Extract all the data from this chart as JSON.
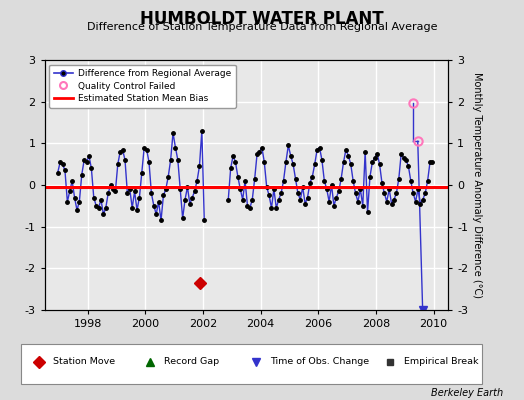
{
  "title": "HUMBOLDT WATER PLANT",
  "subtitle": "Difference of Station Temperature Data from Regional Average",
  "ylabel": "Monthly Temperature Anomaly Difference (°C)",
  "xlim": [
    1996.5,
    2010.5
  ],
  "ylim": [
    -3,
    3
  ],
  "yticks": [
    -3,
    -2,
    -1,
    0,
    1,
    2,
    3
  ],
  "xticks": [
    1998,
    2000,
    2002,
    2004,
    2006,
    2008,
    2010
  ],
  "background_color": "#dcdcdc",
  "plot_bg_color": "#e8e8e8",
  "grid_color": "#ffffff",
  "line_color": "#3333cc",
  "dot_color": "#000000",
  "bias_color": "#ff0000",
  "bias_value": -0.05,
  "station_move_x": 2001.9,
  "station_move_y": -2.35,
  "obs_change_x": 2009.62,
  "qc_fail_x1": 2009.3,
  "qc_fail_y1": 1.97,
  "qc_fail_x2": 2009.45,
  "qc_fail_y2": 1.05,
  "monthly_data": [
    [
      1996.958,
      0.3
    ],
    [
      1997.042,
      0.55
    ],
    [
      1997.125,
      0.5
    ],
    [
      1997.208,
      0.35
    ],
    [
      1997.292,
      -0.4
    ],
    [
      1997.375,
      -0.15
    ],
    [
      1997.458,
      0.1
    ],
    [
      1997.542,
      -0.3
    ],
    [
      1997.625,
      -0.6
    ],
    [
      1997.708,
      -0.4
    ],
    [
      1997.792,
      0.25
    ],
    [
      1997.875,
      0.6
    ],
    [
      1997.958,
      0.55
    ],
    [
      1998.042,
      0.7
    ],
    [
      1998.125,
      0.4
    ],
    [
      1998.208,
      -0.3
    ],
    [
      1998.292,
      -0.5
    ],
    [
      1998.375,
      -0.55
    ],
    [
      1998.458,
      -0.35
    ],
    [
      1998.542,
      -0.7
    ],
    [
      1998.625,
      -0.55
    ],
    [
      1998.708,
      -0.2
    ],
    [
      1998.792,
      0.0
    ],
    [
      1998.875,
      -0.1
    ],
    [
      1998.958,
      -0.15
    ],
    [
      1999.042,
      0.5
    ],
    [
      1999.125,
      0.8
    ],
    [
      1999.208,
      0.85
    ],
    [
      1999.292,
      0.6
    ],
    [
      1999.375,
      -0.2
    ],
    [
      1999.458,
      -0.1
    ],
    [
      1999.542,
      -0.55
    ],
    [
      1999.625,
      -0.15
    ],
    [
      1999.708,
      -0.6
    ],
    [
      1999.792,
      -0.3
    ],
    [
      1999.875,
      0.3
    ],
    [
      1999.958,
      0.9
    ],
    [
      2000.042,
      0.85
    ],
    [
      2000.125,
      0.55
    ],
    [
      2000.208,
      -0.2
    ],
    [
      2000.292,
      -0.5
    ],
    [
      2000.375,
      -0.7
    ],
    [
      2000.458,
      -0.4
    ],
    [
      2000.542,
      -0.85
    ],
    [
      2000.625,
      -0.25
    ],
    [
      2000.708,
      -0.1
    ],
    [
      2000.792,
      0.2
    ],
    [
      2000.875,
      0.6
    ],
    [
      2000.958,
      1.25
    ],
    [
      2001.042,
      0.9
    ],
    [
      2001.125,
      0.6
    ],
    [
      2001.208,
      -0.1
    ],
    [
      2001.292,
      -0.8
    ],
    [
      2001.375,
      -0.35
    ],
    [
      2001.458,
      -0.05
    ],
    [
      2001.542,
      -0.45
    ],
    [
      2001.625,
      -0.3
    ],
    [
      2001.708,
      -0.15
    ],
    [
      2001.792,
      0.1
    ],
    [
      2001.875,
      0.45
    ],
    [
      2001.958,
      1.3
    ],
    [
      2002.042,
      -0.85
    ],
    [
      2002.875,
      -0.35
    ],
    [
      2002.958,
      0.4
    ],
    [
      2003.042,
      0.7
    ],
    [
      2003.125,
      0.55
    ],
    [
      2003.208,
      0.2
    ],
    [
      2003.292,
      -0.1
    ],
    [
      2003.375,
      -0.35
    ],
    [
      2003.458,
      0.1
    ],
    [
      2003.542,
      -0.5
    ],
    [
      2003.625,
      -0.55
    ],
    [
      2003.708,
      -0.35
    ],
    [
      2003.792,
      0.15
    ],
    [
      2003.875,
      0.75
    ],
    [
      2003.958,
      0.8
    ],
    [
      2004.042,
      0.9
    ],
    [
      2004.125,
      0.55
    ],
    [
      2004.208,
      -0.05
    ],
    [
      2004.292,
      -0.25
    ],
    [
      2004.375,
      -0.55
    ],
    [
      2004.458,
      -0.1
    ],
    [
      2004.542,
      -0.55
    ],
    [
      2004.625,
      -0.35
    ],
    [
      2004.708,
      -0.2
    ],
    [
      2004.792,
      0.1
    ],
    [
      2004.875,
      0.55
    ],
    [
      2004.958,
      0.95
    ],
    [
      2005.042,
      0.7
    ],
    [
      2005.125,
      0.5
    ],
    [
      2005.208,
      0.15
    ],
    [
      2005.292,
      -0.2
    ],
    [
      2005.375,
      -0.35
    ],
    [
      2005.458,
      -0.05
    ],
    [
      2005.542,
      -0.45
    ],
    [
      2005.625,
      -0.3
    ],
    [
      2005.708,
      0.05
    ],
    [
      2005.792,
      0.2
    ],
    [
      2005.875,
      0.5
    ],
    [
      2005.958,
      0.85
    ],
    [
      2006.042,
      0.9
    ],
    [
      2006.125,
      0.6
    ],
    [
      2006.208,
      0.1
    ],
    [
      2006.292,
      -0.1
    ],
    [
      2006.375,
      -0.4
    ],
    [
      2006.458,
      0.0
    ],
    [
      2006.542,
      -0.5
    ],
    [
      2006.625,
      -0.3
    ],
    [
      2006.708,
      -0.15
    ],
    [
      2006.792,
      0.15
    ],
    [
      2006.875,
      0.55
    ],
    [
      2006.958,
      0.85
    ],
    [
      2007.042,
      0.7
    ],
    [
      2007.125,
      0.5
    ],
    [
      2007.208,
      0.1
    ],
    [
      2007.292,
      -0.2
    ],
    [
      2007.375,
      -0.4
    ],
    [
      2007.458,
      -0.1
    ],
    [
      2007.542,
      -0.5
    ],
    [
      2007.625,
      0.8
    ],
    [
      2007.708,
      -0.65
    ],
    [
      2007.792,
      0.2
    ],
    [
      2007.875,
      0.55
    ],
    [
      2007.958,
      0.65
    ],
    [
      2008.042,
      0.75
    ],
    [
      2008.125,
      0.5
    ],
    [
      2008.208,
      0.05
    ],
    [
      2008.292,
      -0.2
    ],
    [
      2008.375,
      -0.4
    ],
    [
      2008.458,
      -0.1
    ],
    [
      2008.542,
      -0.45
    ],
    [
      2008.625,
      -0.35
    ],
    [
      2008.708,
      -0.2
    ],
    [
      2008.792,
      0.15
    ],
    [
      2008.875,
      0.75
    ],
    [
      2008.958,
      0.65
    ],
    [
      2009.042,
      0.6
    ],
    [
      2009.125,
      0.45
    ],
    [
      2009.208,
      0.1
    ],
    [
      2009.292,
      -0.2
    ],
    [
      2009.375,
      -0.4
    ],
    [
      2009.458,
      -0.1
    ],
    [
      2009.542,
      -0.45
    ],
    [
      2009.625,
      -0.35
    ],
    [
      2009.708,
      -0.2
    ],
    [
      2009.792,
      0.1
    ],
    [
      2009.875,
      0.55
    ],
    [
      2009.958,
      0.55
    ]
  ],
  "footnote": "Berkeley Earth"
}
